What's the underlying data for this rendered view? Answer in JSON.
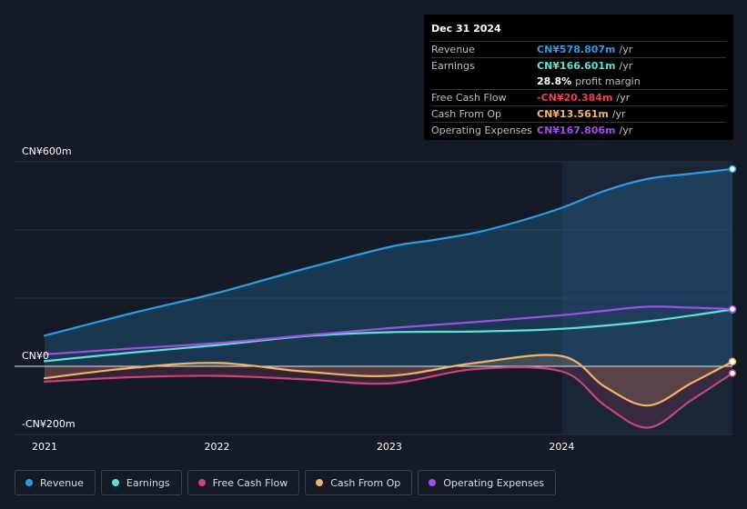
{
  "tooltip": {
    "date": "Dec 31 2024",
    "rows": [
      {
        "label": "Revenue",
        "value": "CN¥578.807m",
        "unit": "/yr",
        "color": "#2d9be6"
      },
      {
        "label": "Earnings",
        "value": "CN¥166.601m",
        "unit": "/yr",
        "color": "#5fe0d6"
      },
      {
        "label": "",
        "value": "28.8%",
        "unit": "profit margin",
        "color": "#ffffff"
      },
      {
        "label": "Free Cash Flow",
        "value": "-CN¥20.384m",
        "unit": "/yr",
        "color": "#e8434b"
      },
      {
        "label": "Cash From Op",
        "value": "CN¥13.561m",
        "unit": "/yr",
        "color": "#f0b36c"
      },
      {
        "label": "Operating Expenses",
        "value": "CN¥167.806m",
        "unit": "/yr",
        "color": "#9f4ee8"
      }
    ]
  },
  "legend": [
    {
      "label": "Revenue",
      "color": "#2d9be6"
    },
    {
      "label": "Earnings",
      "color": "#5fe0d6"
    },
    {
      "label": "Free Cash Flow",
      "color": "#c8457a"
    },
    {
      "label": "Cash From Op",
      "color": "#f0b36c"
    },
    {
      "label": "Operating Expenses",
      "color": "#9f4ee8"
    }
  ],
  "chart_data": {
    "type": "area",
    "title": "",
    "ylabels": [
      "CN¥600m",
      "CN¥0",
      "-CN¥200m"
    ],
    "ylim": [
      -200,
      600
    ],
    "xlim": [
      2021.0,
      2024.99
    ],
    "xticks": [
      2021,
      2022,
      2023,
      2024
    ],
    "xtick_labels": [
      "2021",
      "2022",
      "2023",
      "2024"
    ],
    "highlight_start": 2024.0,
    "series": [
      {
        "name": "Revenue",
        "color": "#2d9be6",
        "fill": true,
        "x": [
          2021.0,
          2021.5,
          2022.0,
          2022.5,
          2023.0,
          2023.25,
          2023.5,
          2023.75,
          2024.0,
          2024.25,
          2024.5,
          2024.75,
          2024.99
        ],
        "y": [
          90,
          155,
          215,
          285,
          350,
          370,
          392,
          425,
          465,
          515,
          550,
          565,
          578.8
        ]
      },
      {
        "name": "Earnings",
        "color": "#5fe0d6",
        "fill": false,
        "x": [
          2021.0,
          2021.5,
          2022.0,
          2022.5,
          2023.0,
          2023.5,
          2024.0,
          2024.5,
          2024.99
        ],
        "y": [
          15,
          40,
          62,
          88,
          100,
          102,
          110,
          132,
          166.6
        ]
      },
      {
        "name": "Operating Expenses",
        "color": "#9f4ee8",
        "fill": false,
        "x": [
          2021.0,
          2021.5,
          2022.0,
          2022.5,
          2023.0,
          2023.5,
          2024.0,
          2024.25,
          2024.5,
          2024.75,
          2024.99
        ],
        "y": [
          35,
          52,
          68,
          90,
          112,
          130,
          150,
          163,
          175,
          172,
          167.8
        ]
      },
      {
        "name": "Free Cash Flow",
        "color": "#c8457a",
        "fill": true,
        "x": [
          2021.0,
          2021.5,
          2022.0,
          2022.5,
          2023.0,
          2023.5,
          2024.0,
          2024.25,
          2024.5,
          2024.75,
          2024.99
        ],
        "y": [
          -45,
          -32,
          -28,
          -38,
          -50,
          -8,
          -15,
          -115,
          -180,
          -100,
          -20.4
        ]
      },
      {
        "name": "Cash From Op",
        "color": "#f0b36c",
        "fill": true,
        "x": [
          2021.0,
          2021.5,
          2022.0,
          2022.5,
          2023.0,
          2023.5,
          2024.0,
          2024.25,
          2024.5,
          2024.75,
          2024.99
        ],
        "y": [
          -35,
          -5,
          10,
          -15,
          -28,
          10,
          30,
          -60,
          -115,
          -50,
          13.6
        ]
      }
    ]
  }
}
